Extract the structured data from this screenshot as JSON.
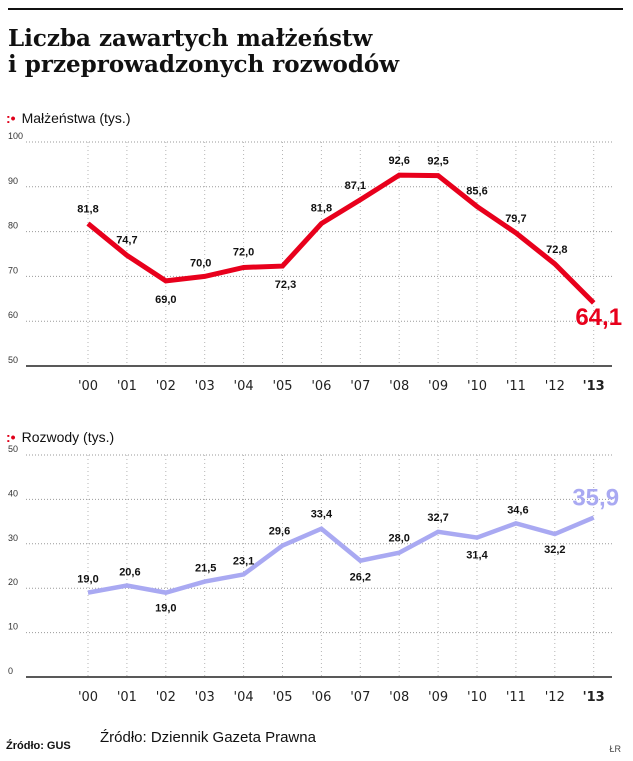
{
  "title": "Liczba zawartych małżeństw i przeprowadzonych rozwodów",
  "title_line1": "Liczba zawartych małżeństw",
  "title_line2": "i przeprowadzonych rozwodów",
  "source_small": "Źródło: GUS",
  "source_big": "Źródło: Dziennik Gazeta Prawna",
  "credit": "ŁR",
  "colors": {
    "marriages": "#e8001c",
    "divorces": "#a9a9f2",
    "highlight_year": "#e0001a"
  },
  "chart_data": [
    {
      "type": "line",
      "title": "Małżeństwa (tys.)",
      "categories": [
        "'00",
        "'01",
        "'02",
        "'03",
        "'04",
        "'05",
        "'06",
        "'07",
        "'08",
        "'09",
        "'10",
        "'11",
        "'12",
        "'13"
      ],
      "values": [
        81.8,
        74.7,
        69.0,
        70.0,
        72.0,
        72.3,
        81.8,
        87.1,
        92.6,
        92.5,
        85.6,
        79.7,
        72.8,
        64.1
      ],
      "labels": [
        "81,8",
        "74,7",
        "69,0",
        "70,0",
        "72,0",
        "72,3",
        "81,8",
        "87,1",
        "92,6",
        "92,5",
        "85,6",
        "79,7",
        "72,8",
        "64,1"
      ],
      "yticks": [
        50,
        60,
        70,
        80,
        90,
        100
      ],
      "ylim": [
        50,
        100
      ],
      "grid": true
    },
    {
      "type": "line",
      "title": "Rozwody (tys.)",
      "categories": [
        "'00",
        "'01",
        "'02",
        "'03",
        "'04",
        "'05",
        "'06",
        "'07",
        "'08",
        "'09",
        "'10",
        "'11",
        "'12",
        "'13"
      ],
      "values": [
        19.0,
        20.6,
        19.0,
        21.5,
        23.1,
        29.6,
        33.4,
        26.2,
        28.0,
        32.7,
        31.4,
        34.6,
        32.2,
        35.9
      ],
      "labels": [
        "19,0",
        "20,6",
        "19,0",
        "21,5",
        "23,1",
        "29,6",
        "33,4",
        "26,2",
        "28,0",
        "32,7",
        "31,4",
        "34,6",
        "32,2",
        "35,9"
      ],
      "yticks": [
        0,
        10,
        20,
        30,
        40,
        50
      ],
      "ylim": [
        0,
        50
      ],
      "grid": true
    }
  ]
}
